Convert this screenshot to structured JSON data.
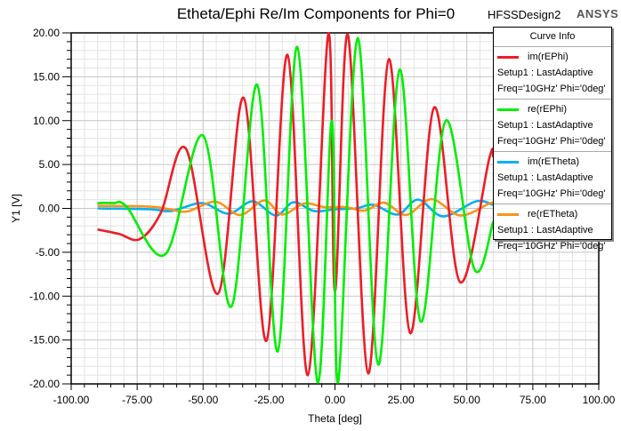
{
  "chart_data": {
    "type": "line",
    "title": "Etheta/Ephi Re/Im Components for Phi=0",
    "design_name": "HFSSDesign2",
    "brand": "ANSYS",
    "xlabel": "Theta [deg]",
    "ylabel": "Y1 [V]",
    "xlim": [
      -100,
      100
    ],
    "ylim": [
      -20,
      20
    ],
    "x_ticks": [
      "-100.00",
      "-75.00",
      "-50.00",
      "-25.00",
      "0.00",
      "25.00",
      "50.00",
      "75.00",
      "100.00"
    ],
    "y_ticks": [
      "20.00",
      "15.00",
      "10.00",
      "5.00",
      "0.00",
      "-5.00",
      "-10.00",
      "-15.00",
      "-20.00"
    ],
    "grid": true,
    "legend_title": "Curve Info",
    "legend_position": "top-right",
    "series": [
      {
        "name": "im(rEPhi)",
        "setup": "Setup1 : LastAdaptive",
        "params": "Freq='10GHz' Phi='0deg'",
        "color": "#ee1c25",
        "points": [
          [
            -90,
            -2.4
          ],
          [
            -82,
            -2.9
          ],
          [
            -74,
            -3.5
          ],
          [
            -66,
            -0.5
          ],
          [
            -56.5,
            6.8
          ],
          [
            -44.3,
            -9.7
          ],
          [
            -34.6,
            12.6
          ],
          [
            -26,
            -15.1
          ],
          [
            -18,
            17.5
          ],
          [
            -10.3,
            -19.0
          ],
          [
            -2.5,
            19.9
          ],
          [
            0,
            -9.5
          ],
          [
            4.9,
            19.8
          ],
          [
            12.6,
            -18.8
          ],
          [
            20.4,
            17.0
          ],
          [
            28.5,
            -14.2
          ],
          [
            37.6,
            11.5
          ],
          [
            47.4,
            -8.4
          ],
          [
            58.5,
            5.7
          ],
          [
            60,
            5.9
          ]
        ]
      },
      {
        "name": "re(rEPhi)",
        "setup": "Setup1 : LastAdaptive",
        "params": "Freq='10GHz' Phi='0deg'",
        "color": "#00ee00",
        "points": [
          [
            -90,
            0.6
          ],
          [
            -84,
            0.6
          ],
          [
            -79,
            0.2
          ],
          [
            -64.2,
            -5.2
          ],
          [
            -50,
            8.3
          ],
          [
            -39.3,
            -11.2
          ],
          [
            -29.5,
            14.1
          ],
          [
            -21.7,
            -16.3
          ],
          [
            -14.3,
            18.4
          ],
          [
            -6.6,
            -19.8
          ],
          [
            -1.2,
            10.0
          ],
          [
            1.2,
            -19.8
          ],
          [
            8.6,
            19.4
          ],
          [
            16.4,
            -17.8
          ],
          [
            24.5,
            15.8
          ],
          [
            32.5,
            -12.9
          ],
          [
            42,
            10.0
          ],
          [
            52.8,
            -6.9
          ],
          [
            60,
            -1.5
          ]
        ]
      },
      {
        "name": "im(rETheta)",
        "setup": "Setup1 : LastAdaptive",
        "params": "Freq='10GHz' Phi='0deg'",
        "color": "#00b0f0",
        "points": [
          [
            -90,
            0
          ],
          [
            -70,
            -0.1
          ],
          [
            -62,
            -0.3
          ],
          [
            -50.4,
            0.6
          ],
          [
            -40.3,
            -0.6
          ],
          [
            -31.2,
            0.8
          ],
          [
            -22.4,
            -0.8
          ],
          [
            -15.7,
            0.7
          ],
          [
            -7.9,
            -0.3
          ],
          [
            0,
            -0.1
          ],
          [
            8,
            0
          ],
          [
            14.7,
            0.4
          ],
          [
            23.8,
            -0.7
          ],
          [
            31.5,
            1.0
          ],
          [
            41,
            -0.9
          ],
          [
            53.4,
            0.8
          ],
          [
            60,
            0.4
          ]
        ]
      },
      {
        "name": "re(rETheta)",
        "setup": "Setup1 : LastAdaptive",
        "params": "Freq='10GHz' Phi='0deg'",
        "color": "#f7941d",
        "points": [
          [
            -90,
            0.3
          ],
          [
            -70,
            0.2
          ],
          [
            -62.8,
            -0.1
          ],
          [
            -56,
            -0.35
          ],
          [
            -45.3,
            0.75
          ],
          [
            -36,
            -0.75
          ],
          [
            -26.8,
            0.9
          ],
          [
            -20,
            -0.7
          ],
          [
            -11.7,
            0.55
          ],
          [
            -4,
            0.15
          ],
          [
            4,
            0.15
          ],
          [
            11.3,
            -0.25
          ],
          [
            18.7,
            0.65
          ],
          [
            27,
            -0.75
          ],
          [
            36.6,
            1.05
          ],
          [
            47.4,
            -0.8
          ],
          [
            58.5,
            0.55
          ],
          [
            60,
            0.6
          ]
        ]
      }
    ]
  }
}
